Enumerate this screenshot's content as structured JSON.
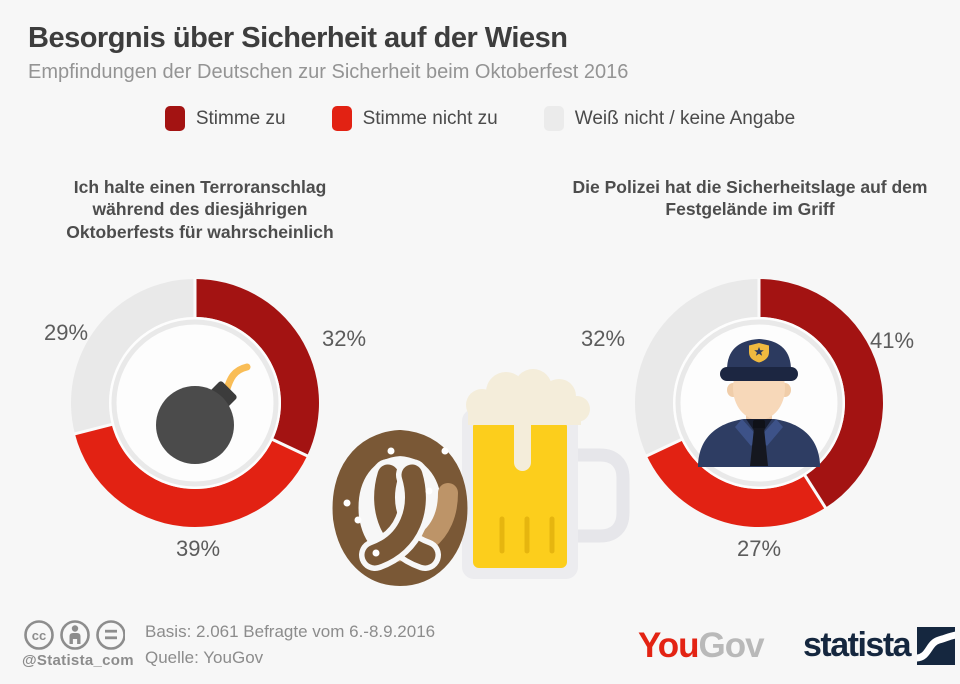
{
  "header": {
    "title": "Besorgnis über Sicherheit auf der Wiesn",
    "subtitle": "Empfindungen der Deutschen zur Sicherheit beim Oktoberfest 2016"
  },
  "legend": {
    "items": [
      {
        "label": "Stimme zu",
        "color": "#a31312"
      },
      {
        "label": "Stimme nicht zu",
        "color": "#e22213"
      },
      {
        "label": "Weiß nicht / keine Angabe",
        "color": "#ebebeb"
      }
    ]
  },
  "chart_data": [
    {
      "type": "pie",
      "variant": "donut",
      "title": "Ich halte einen Terroranschlag während des diesjährigen Oktoberfests für wahrscheinlich",
      "categories": [
        "Stimme zu",
        "Stimme nicht zu",
        "Weiß nicht / keine Angabe"
      ],
      "values": [
        32,
        39,
        29
      ],
      "colors": [
        "#a31312",
        "#e22213",
        "#e9e9e9"
      ],
      "labels": {
        "right": "32%",
        "bottom": "39%",
        "left": "29%"
      },
      "center_icon": "bomb-icon",
      "start_angle_deg": 0,
      "direction": "clockwise",
      "legend_position": "top"
    },
    {
      "type": "pie",
      "variant": "donut",
      "title": "Die Polizei hat die Sicherheitslage auf dem Festgelände im Griff",
      "categories": [
        "Stimme zu",
        "Stimme nicht zu",
        "Weiß nicht / keine Angabe"
      ],
      "values": [
        41,
        27,
        32
      ],
      "colors": [
        "#a31312",
        "#e22213",
        "#e9e9e9"
      ],
      "labels": {
        "right": "41%",
        "bottom": "27%",
        "left": "32%"
      },
      "center_icon": "police-officer-icon",
      "start_angle_deg": 0,
      "direction": "clockwise",
      "legend_position": "top"
    }
  ],
  "footer": {
    "handle": "@Statista_com",
    "basis": "Basis: 2.061 Befragte vom 6.-8.9.2016",
    "source": "Quelle: YouGov",
    "yougov_logo": {
      "part1": "You",
      "part2": "Gov"
    },
    "statista_logo": "statista"
  }
}
